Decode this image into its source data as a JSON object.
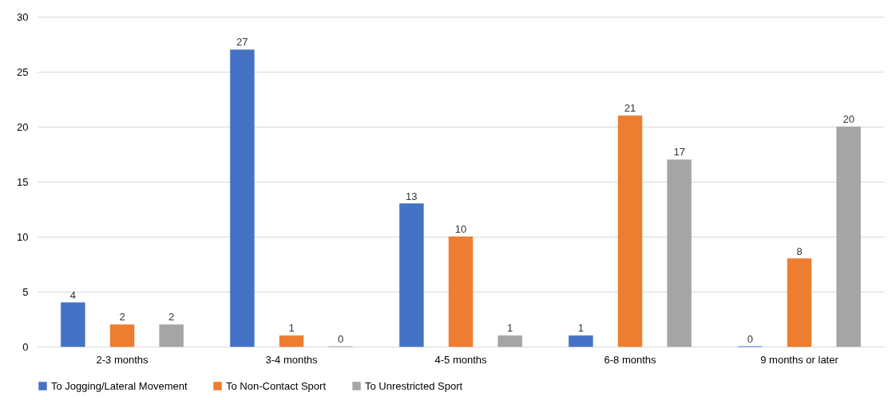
{
  "chart_data": {
    "type": "bar",
    "categories": [
      "2-3 months",
      "3-4 months",
      "4-5 months",
      "6-8 months",
      "9 months or later"
    ],
    "series": [
      {
        "name": "To Jogging/Lateral Movement",
        "color": "#4472c4",
        "values": [
          4,
          27,
          13,
          1,
          0
        ]
      },
      {
        "name": "To Non-Contact Sport",
        "color": "#ed7d31",
        "values": [
          2,
          1,
          10,
          21,
          8
        ]
      },
      {
        "name": "To Unrestricted Sport",
        "color": "#a5a5a5",
        "values": [
          2,
          0,
          1,
          17,
          20
        ]
      }
    ],
    "ylim": [
      0,
      30
    ],
    "yticks": [
      0,
      5,
      10,
      15,
      20,
      25,
      30
    ],
    "grid": "y",
    "legend": "bottom",
    "data_labels": true
  }
}
